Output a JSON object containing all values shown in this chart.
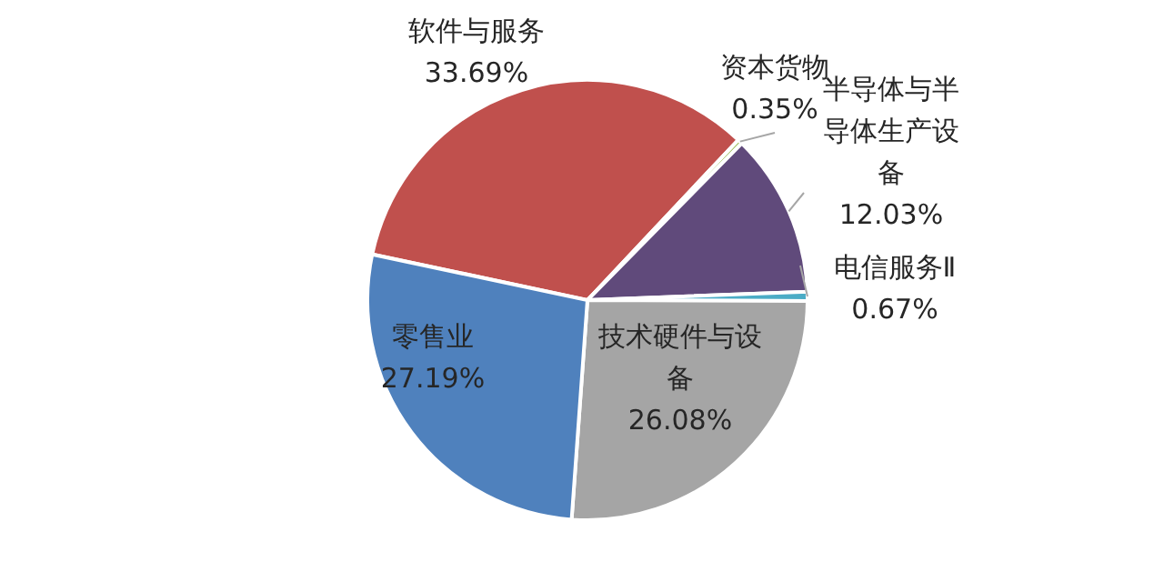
{
  "chart_data": {
    "type": "pie",
    "categories": [
      "软件与服务",
      "资本货物",
      "半导体与半导体生产设备",
      "电信服务Ⅱ",
      "技术硬件与设备",
      "零售业"
    ],
    "values": [
      33.69,
      0.35,
      12.03,
      0.67,
      26.08,
      27.19
    ],
    "value_labels": [
      "33.69%",
      "0.35%",
      "12.03%",
      "0.67%",
      "26.08%",
      "27.19%"
    ],
    "colors": [
      "#c0504d",
      "#9bbb59",
      "#604a7b",
      "#4bacc6",
      "#a5a5a5",
      "#4f81bd"
    ],
    "legend": false
  }
}
